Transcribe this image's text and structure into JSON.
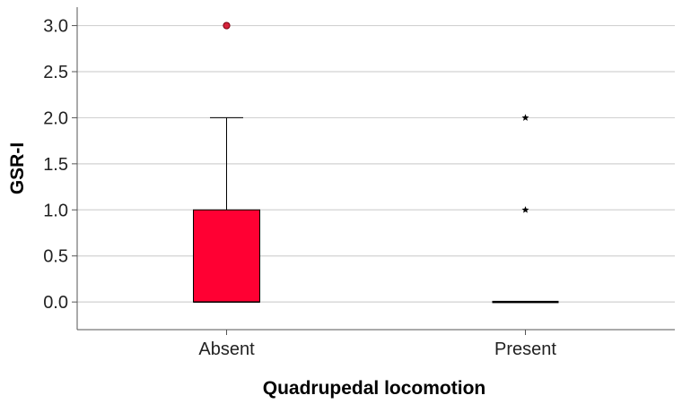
{
  "chart_data": {
    "type": "boxplot",
    "title": "",
    "xlabel": "Quadrupedal locomotion",
    "ylabel": "GSR-I",
    "ylim": [
      -0.3,
      3.2
    ],
    "yticks": [
      "0.0",
      "0.5",
      "1.0",
      "1.5",
      "2.0",
      "2.5",
      "3.0"
    ],
    "grid": true,
    "categories": [
      "Absent",
      "Present"
    ],
    "boxes": [
      {
        "category": "Absent",
        "whisker_low": 0,
        "q1": 0,
        "median": 0,
        "q3": 1,
        "whisker_high": 2,
        "outliers": [
          {
            "value": 3,
            "marker": "circle"
          }
        ]
      },
      {
        "category": "Present",
        "whisker_low": 0,
        "q1": 0,
        "median": 0,
        "q3": 0,
        "whisker_high": 0,
        "outliers": [
          {
            "value": 1,
            "marker": "star"
          },
          {
            "value": 2,
            "marker": "star"
          }
        ]
      }
    ],
    "colors": {
      "box_fill": "#ff0033",
      "outlier_fill": "#d6243c",
      "grid": "#d2d2d2",
      "axis": "#555555"
    }
  }
}
